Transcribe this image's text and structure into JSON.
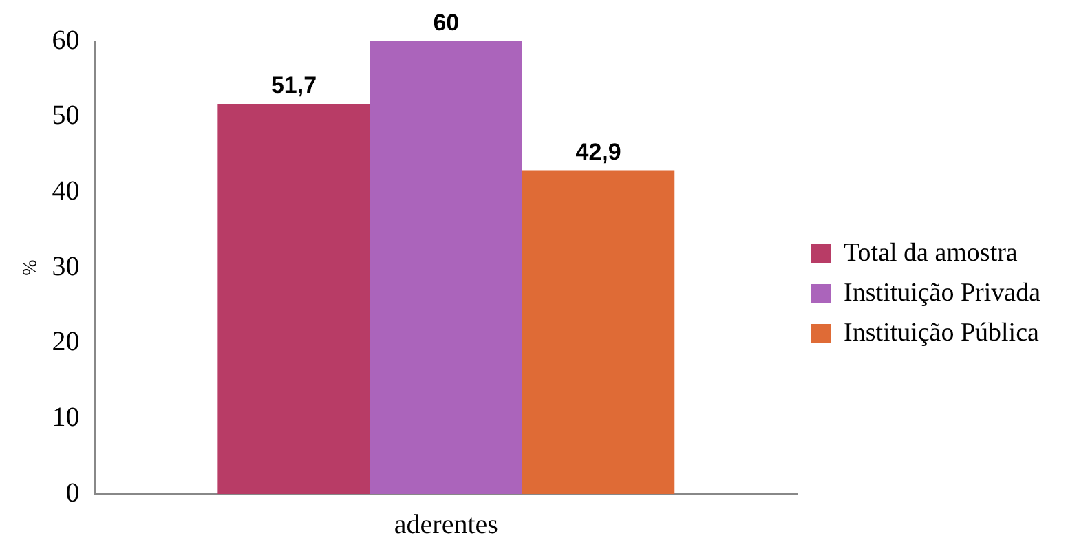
{
  "chart_data": {
    "type": "bar",
    "ylabel": "%",
    "categories": [
      "aderentes"
    ],
    "series": [
      {
        "name": "Total da amostra",
        "color": "#b83c66",
        "values": [
          51.7
        ],
        "value_labels": [
          "51,7"
        ]
      },
      {
        "name": "Instituição Privada",
        "color": "#ab64bb",
        "values": [
          60
        ],
        "value_labels": [
          "60"
        ]
      },
      {
        "name": "Instituição Pública",
        "color": "#df6b36",
        "values": [
          42.9
        ],
        "value_labels": [
          "42,9"
        ]
      }
    ],
    "ylim": [
      0,
      60
    ],
    "yticks": [
      0,
      10,
      20,
      30,
      40,
      50,
      60
    ],
    "grid": false,
    "legend": "right"
  }
}
